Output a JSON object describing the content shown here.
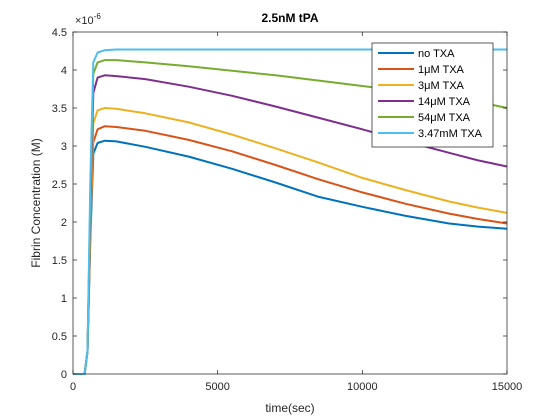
{
  "chart_data": {
    "type": "line",
    "title": "2.5nM tPA",
    "xlabel": "time(sec)",
    "ylabel": "Fibrin Concentration (M)",
    "y_multiplier_label": "×10",
    "y_multiplier_exponent": "-6",
    "xlim": [
      0,
      15000
    ],
    "ylim": [
      0,
      4.5
    ],
    "xticks": [
      0,
      5000,
      10000,
      15000
    ],
    "yticks": [
      0,
      0.5,
      1,
      1.5,
      2,
      2.5,
      3,
      3.5,
      4,
      4.5
    ],
    "grid": false,
    "legend_position": "top-right",
    "series": [
      {
        "name": "no TXA",
        "color": "#0072BD",
        "x": [
          0,
          400,
          500,
          600,
          700,
          850,
          1100,
          1500,
          2500,
          4000,
          5500,
          7000,
          8500,
          10000,
          11500,
          13000,
          14000,
          15000
        ],
        "y": [
          0,
          0,
          0.3,
          1.8,
          2.9,
          3.04,
          3.07,
          3.06,
          2.99,
          2.86,
          2.7,
          2.52,
          2.33,
          2.2,
          2.08,
          1.98,
          1.94,
          1.91
        ]
      },
      {
        "name": "1μM TXA",
        "color": "#D95319",
        "x": [
          0,
          400,
          500,
          600,
          700,
          850,
          1100,
          1500,
          2500,
          4000,
          5500,
          7000,
          8500,
          10000,
          11500,
          13000,
          14000,
          15000
        ],
        "y": [
          0,
          0,
          0.3,
          1.9,
          3.05,
          3.22,
          3.26,
          3.25,
          3.2,
          3.08,
          2.93,
          2.75,
          2.56,
          2.39,
          2.24,
          2.11,
          2.04,
          1.98
        ]
      },
      {
        "name": "3μM TXA",
        "color": "#EDB120",
        "x": [
          0,
          400,
          500,
          600,
          700,
          850,
          1100,
          1500,
          2500,
          4000,
          5500,
          7000,
          8500,
          10000,
          11500,
          13000,
          14000,
          15000
        ],
        "y": [
          0,
          0,
          0.3,
          2.0,
          3.3,
          3.47,
          3.5,
          3.49,
          3.43,
          3.31,
          3.15,
          2.97,
          2.78,
          2.58,
          2.42,
          2.27,
          2.19,
          2.12
        ]
      },
      {
        "name": "14μM TXA",
        "color": "#7E2F8E",
        "x": [
          0,
          400,
          500,
          600,
          700,
          850,
          1100,
          1500,
          2500,
          4000,
          5500,
          7000,
          8500,
          10000,
          11500,
          13000,
          14000,
          15000
        ],
        "y": [
          0,
          0,
          0.3,
          2.2,
          3.7,
          3.9,
          3.93,
          3.92,
          3.88,
          3.78,
          3.66,
          3.52,
          3.37,
          3.22,
          3.06,
          2.91,
          2.81,
          2.73
        ]
      },
      {
        "name": "54μM TXA",
        "color": "#77AC30",
        "x": [
          0,
          400,
          500,
          600,
          700,
          850,
          1100,
          1500,
          2500,
          4000,
          5500,
          7000,
          8500,
          10000,
          11500,
          13000,
          14000,
          15000
        ],
        "y": [
          0,
          0,
          0.3,
          2.4,
          3.95,
          4.1,
          4.13,
          4.13,
          4.1,
          4.05,
          3.99,
          3.93,
          3.86,
          3.79,
          3.72,
          3.64,
          3.58,
          3.5
        ]
      },
      {
        "name": "3.47mM TXA",
        "color": "#4DBEEE",
        "x": [
          0,
          400,
          500,
          600,
          700,
          850,
          1100,
          1500,
          2500,
          4000,
          5500,
          7000,
          8500,
          10000,
          11500,
          13000,
          14000,
          15000
        ],
        "y": [
          0,
          0,
          0.3,
          2.6,
          4.1,
          4.23,
          4.26,
          4.27,
          4.27,
          4.27,
          4.27,
          4.27,
          4.27,
          4.27,
          4.27,
          4.27,
          4.27,
          4.27
        ]
      }
    ]
  }
}
